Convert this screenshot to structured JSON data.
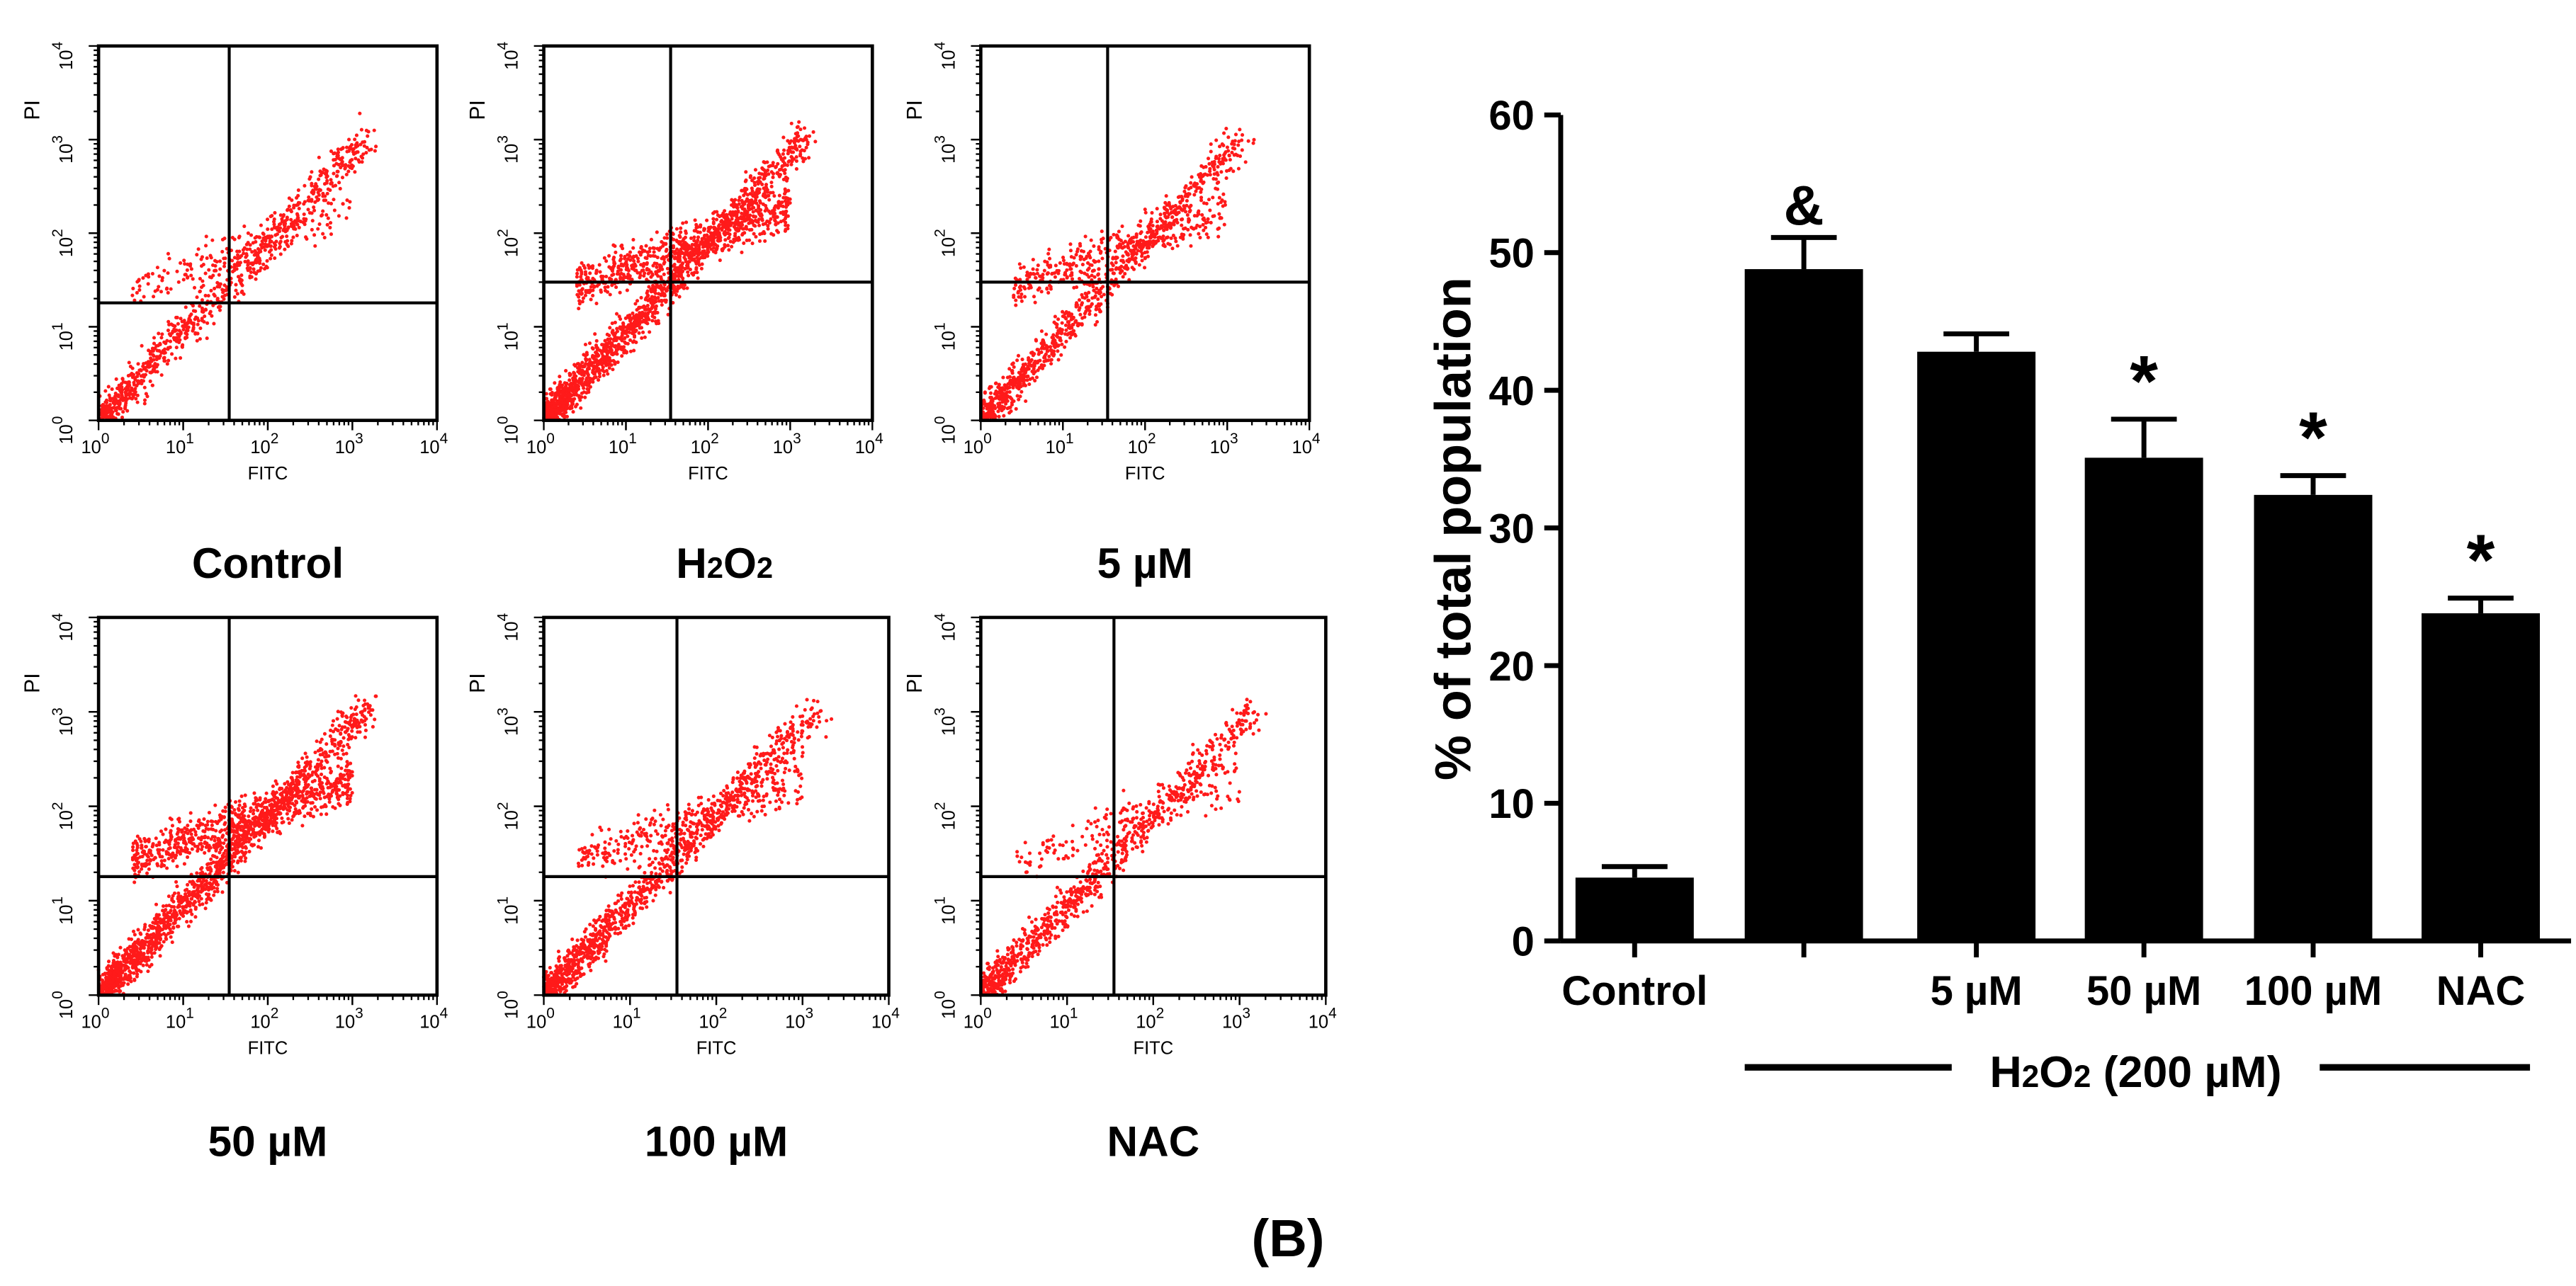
{
  "figure_label": "(B)",
  "flow_plots": {
    "x_axis_label": "FITC",
    "y_axis_label": "PI",
    "tick_labels": [
      "10",
      "0",
      "10",
      "1",
      "10",
      "2",
      "10",
      "3",
      "10",
      "4"
    ],
    "exponents": [
      "0",
      "1",
      "2",
      "3",
      "4"
    ],
    "tick_base": "10",
    "panels": [
      {
        "title": "Control",
        "gate": {
          "fitc": 35,
          "pi": 18
        }
      },
      {
        "title_main": "H",
        "title_sub1": "2",
        "title_mid": "O",
        "title_sub2": "2",
        "gate": {
          "fitc": 35,
          "pi": 30
        }
      },
      {
        "title": "5 µM",
        "gate": {
          "fitc": 35,
          "pi": 30
        }
      },
      {
        "title": "50 µM",
        "gate": {
          "fitc": 35,
          "pi": 18
        }
      },
      {
        "title": "100 µM",
        "gate": {
          "fitc": 35,
          "pi": 18
        }
      },
      {
        "title": "NAC",
        "gate": {
          "fitc": 35,
          "pi": 18
        }
      }
    ]
  },
  "chart_data": {
    "type": "bar",
    "categories": [
      "Control",
      "",
      "5 µM",
      "50 µM",
      "100 µM",
      "NAC"
    ],
    "values": [
      4.6,
      48.8,
      42.8,
      35.1,
      32.4,
      23.8
    ],
    "errors": [
      0.8,
      2.3,
      1.3,
      2.8,
      1.4,
      1.1
    ],
    "annotations": [
      "",
      "&",
      "",
      "*",
      "*",
      "*"
    ],
    "ylabel": "% of total population",
    "ylim": [
      0,
      60
    ],
    "yticks": [
      0,
      10,
      20,
      30,
      40,
      50,
      60
    ],
    "group_label_main": "H",
    "group_label_sub": "2",
    "group_label_mid": "O",
    "group_label_sub2": "2",
    "group_label_rest": " (200 µM)",
    "bar_color": "#000000"
  },
  "colors": {
    "dots": "#ff1a1a",
    "axes": "#000000"
  }
}
